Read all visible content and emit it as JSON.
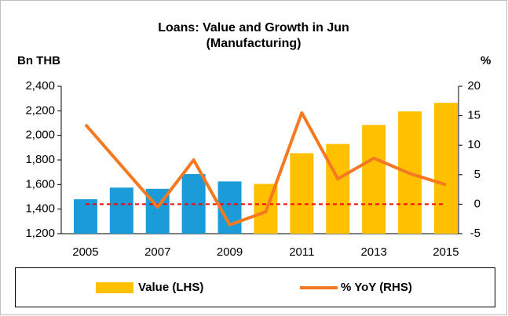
{
  "chart_data": {
    "type": "bar_line",
    "title": "Loans: Value and Growth in Jun",
    "subtitle": "(Manufacturing)",
    "y_label": "Bn THB",
    "y2_label": "%",
    "categories": [
      "2005",
      null,
      "2007",
      null,
      "2009",
      null,
      "2011",
      null,
      "2013",
      null,
      "2015"
    ],
    "series": [
      {
        "name": "Value (LHS)",
        "type": "bar",
        "color": "#ffc000",
        "colors": [
          "#1b9bd7",
          "#1b9bd7",
          "#1b9bd7",
          "#1b9bd7",
          "#1b9bd7",
          "#ffc000",
          "#ffc000",
          "#ffc000",
          "#ffc000",
          "#ffc000",
          "#ffc000"
        ],
        "values": [
          1480,
          1575,
          1565,
          1685,
          1625,
          1605,
          1855,
          1930,
          2085,
          2195,
          2265
        ]
      },
      {
        "name": "% YoY (RHS)",
        "type": "line",
        "axis": "y2",
        "color": "#f47920",
        "values": [
          13.5,
          6.5,
          -0.5,
          7.5,
          -3.5,
          -1.3,
          15.5,
          4.3,
          7.8,
          5.2,
          3.3
        ]
      }
    ],
    "reference_line": {
      "axis": "y2",
      "value": 0,
      "color": "#ff0000"
    },
    "ylim": [
      1200,
      2400
    ],
    "yticks": [
      {
        "value": 1200,
        "label": "1,200"
      },
      {
        "value": 1400,
        "label": "1,400"
      },
      {
        "value": 1600,
        "label": "1,600"
      },
      {
        "value": 1800,
        "label": "1,800"
      },
      {
        "value": 2000,
        "label": "2,000"
      },
      {
        "value": 2200,
        "label": "2,200"
      },
      {
        "value": 2400,
        "label": "2,400"
      }
    ],
    "y2lim": [
      -5,
      20
    ],
    "y2ticks": [
      -5,
      0,
      5,
      10,
      15,
      20
    ],
    "legend": "bottom"
  }
}
